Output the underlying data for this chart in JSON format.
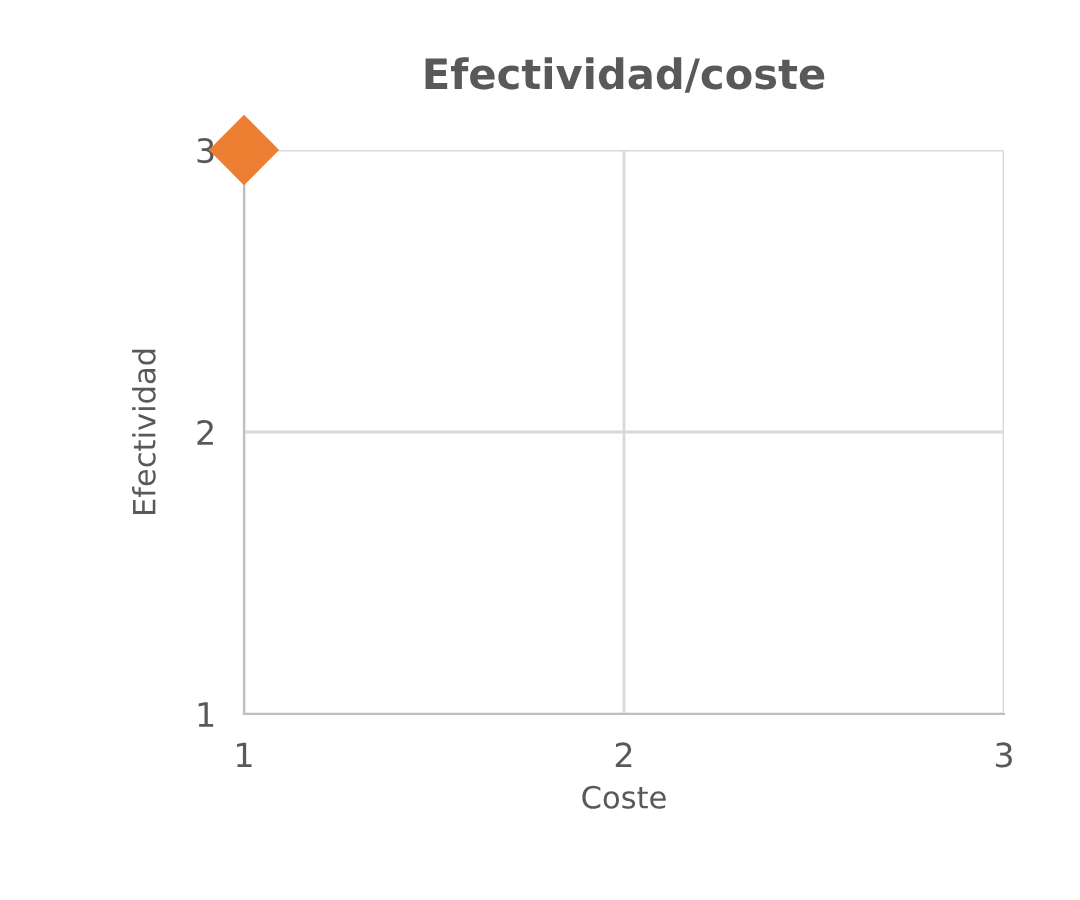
{
  "chart_data": {
    "type": "scatter",
    "title": "Efectividad/coste",
    "xlabel": "Coste",
    "ylabel": "Efectividad",
    "x": [
      1
    ],
    "series": [
      {
        "color": "#ed7d31",
        "values": [
          3
        ]
      }
    ],
    "xlim": [
      1,
      3
    ],
    "ylim": [
      1,
      3
    ],
    "xticks": [
      1,
      2,
      3
    ],
    "yticks": [
      1,
      2,
      3
    ],
    "grid": true,
    "marker": "diamond"
  }
}
